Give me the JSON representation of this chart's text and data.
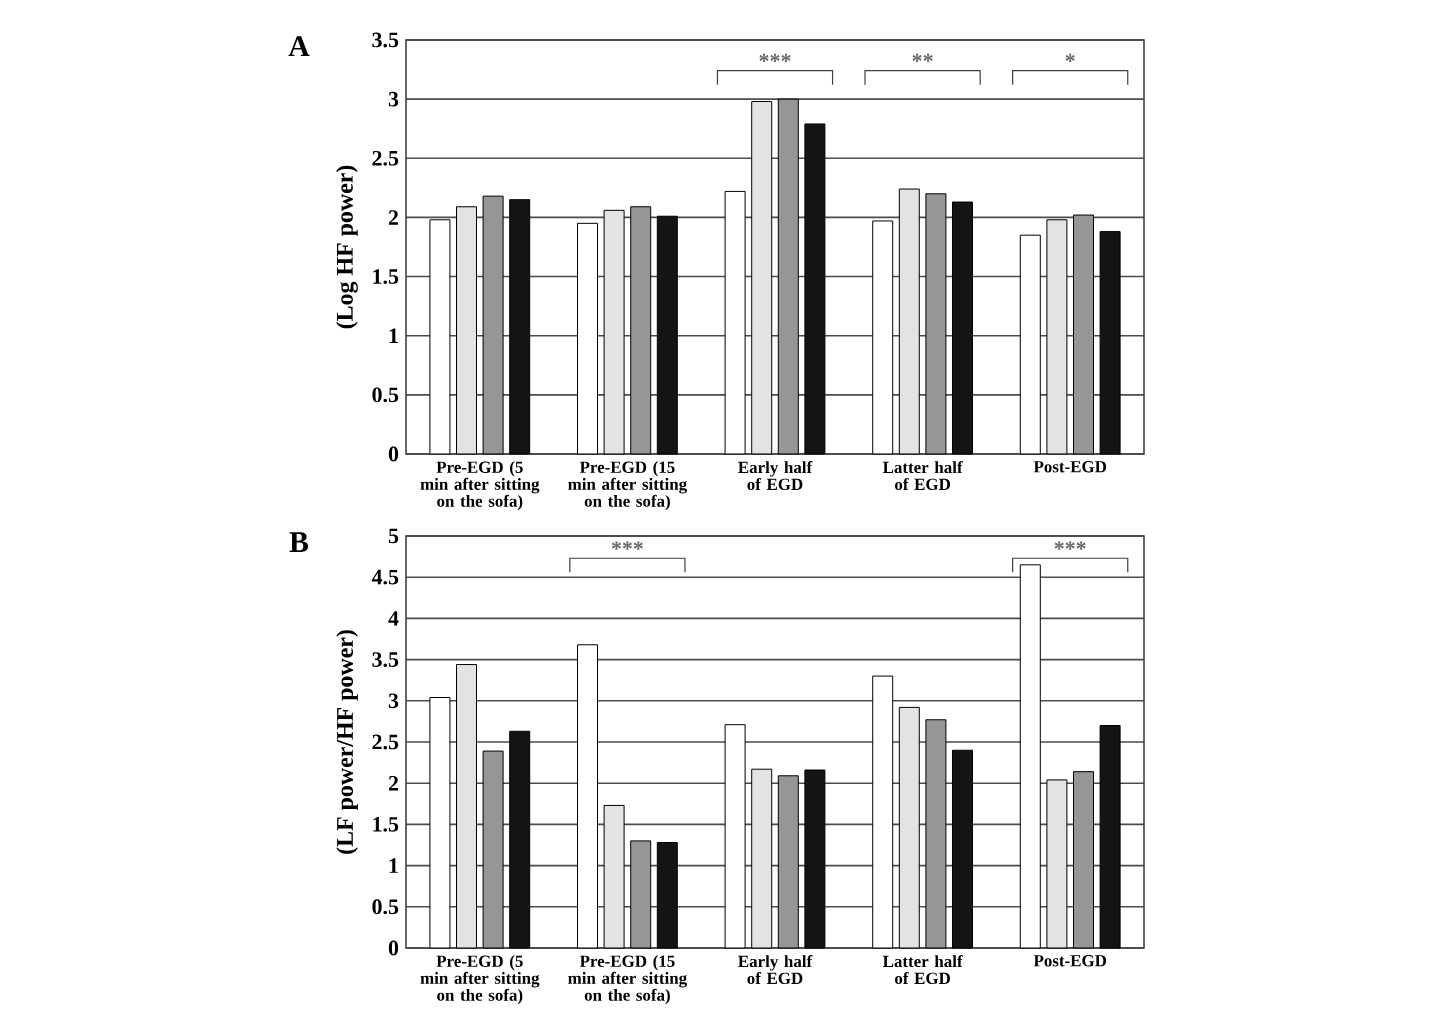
{
  "chart_data": [
    {
      "type": "bar",
      "title": "A",
      "ylabel": "(Log HF power)",
      "categories": [
        "Pre-EGD (5 min after sitting on the sofa)",
        "Pre-EGD (15 min after sitting on the sofa)",
        "Early half of EGD",
        "Latter half of EGD",
        "Post-EGD"
      ],
      "series": [
        {
          "color": "#ffffff",
          "values": [
            1.98,
            1.95,
            2.22,
            1.97,
            1.85
          ]
        },
        {
          "color": "#e3e3e3",
          "values": [
            2.09,
            2.06,
            2.98,
            2.24,
            1.98
          ]
        },
        {
          "color": "#969696",
          "values": [
            2.18,
            2.09,
            3.0,
            2.2,
            2.02
          ]
        },
        {
          "color": "#141414",
          "values": [
            2.15,
            2.01,
            2.79,
            2.13,
            1.88
          ]
        }
      ],
      "ylim": [
        0,
        3.5
      ],
      "yticks": [
        0,
        0.5,
        1,
        1.5,
        2,
        2.5,
        3,
        3.5
      ],
      "grid": "y",
      "annotations": [
        "***",
        "**",
        "*"
      ]
    },
    {
      "type": "bar",
      "title": "B",
      "ylabel": "(LF power/HF power)",
      "categories": [
        "Pre-EGD (5 min after sitting on the sofa)",
        "Pre-EGD (15 min after sitting on the sofa)",
        "Early half of EGD",
        "Latter half of EGD",
        "Post-EGD"
      ],
      "series": [
        {
          "color": "#ffffff",
          "values": [
            3.04,
            3.68,
            2.71,
            3.3,
            4.65
          ]
        },
        {
          "color": "#e3e3e3",
          "values": [
            3.44,
            1.73,
            2.17,
            2.92,
            2.04
          ]
        },
        {
          "color": "#969696",
          "values": [
            2.39,
            1.3,
            2.09,
            2.77,
            2.14
          ]
        },
        {
          "color": "#141414",
          "values": [
            2.63,
            1.28,
            2.16,
            2.4,
            2.7
          ]
        }
      ],
      "ylim": [
        0,
        5
      ],
      "yticks": [
        0,
        0.5,
        1,
        1.5,
        2,
        2.5,
        3,
        3.5,
        4,
        4.5,
        5
      ],
      "grid": "y",
      "annotations": [
        "***",
        "***"
      ]
    }
  ]
}
